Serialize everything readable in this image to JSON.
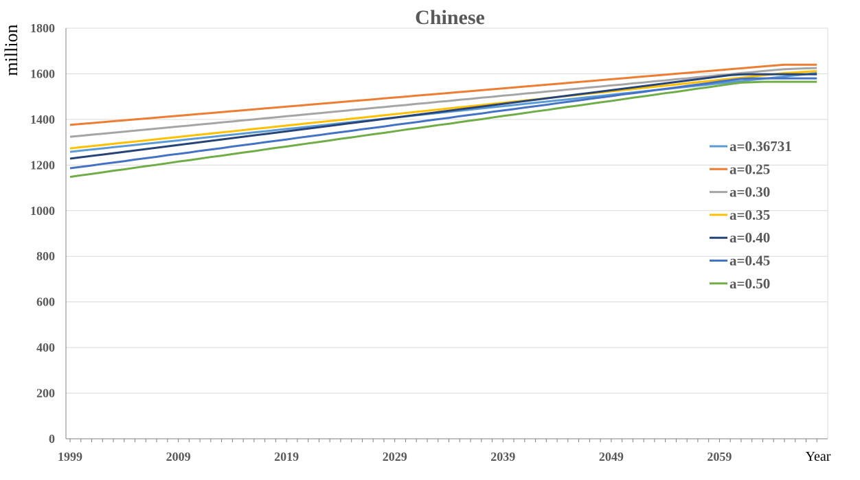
{
  "chart_data": {
    "type": "line",
    "title": "Chinese",
    "ylabel": "million",
    "xlabel": "Year",
    "x": [
      1999,
      2000,
      2001,
      2002,
      2003,
      2004,
      2005,
      2006,
      2007,
      2008,
      2009,
      2010,
      2011,
      2012,
      2013,
      2014,
      2015,
      2016,
      2017,
      2018,
      2019,
      2020,
      2021,
      2022,
      2023,
      2024,
      2025,
      2026,
      2027,
      2028,
      2029,
      2030,
      2031,
      2032,
      2033,
      2034,
      2035,
      2036,
      2037,
      2038,
      2039,
      2040,
      2041,
      2042,
      2043,
      2044,
      2045,
      2046,
      2047,
      2048,
      2049,
      2050,
      2051,
      2052,
      2053,
      2054,
      2055,
      2056,
      2057,
      2058,
      2059,
      2060,
      2061,
      2062,
      2063,
      2064,
      2065,
      2066,
      2067,
      2068
    ],
    "xticks": [
      "1999",
      "2009",
      "2019",
      "2029",
      "2039",
      "2049",
      "2059"
    ],
    "yticks": [
      "0",
      "200",
      "400",
      "600",
      "800",
      "1000",
      "1200",
      "1400",
      "1600",
      "1800"
    ],
    "ylim": [
      0,
      1800
    ],
    "grid": "horizontal",
    "legend_position": "right",
    "series": [
      {
        "name": "a=0.36731",
        "color": "#5b9bd5",
        "values": [
          1258,
          1263,
          1268,
          1273,
          1278,
          1283,
          1288,
          1293,
          1298,
          1303,
          1308,
          1313,
          1318,
          1323,
          1328,
          1333,
          1338,
          1343,
          1348,
          1353,
          1358,
          1363,
          1368,
          1373,
          1378,
          1383,
          1388,
          1393,
          1398,
          1403,
          1408,
          1413,
          1418,
          1423,
          1428,
          1433,
          1438,
          1443,
          1448,
          1453,
          1458,
          1463,
          1468,
          1473,
          1478,
          1483,
          1488,
          1493,
          1498,
          1503,
          1508,
          1513,
          1518,
          1523,
          1528,
          1533,
          1538,
          1543,
          1548,
          1553,
          1558,
          1563,
          1568,
          1573,
          1578,
          1583,
          1588,
          1593,
          1598,
          1603
        ]
      },
      {
        "name": "a=0.25",
        "color": "#ed7d31",
        "values": [
          1376,
          1380,
          1384,
          1388,
          1392,
          1396,
          1400,
          1404,
          1408,
          1412,
          1416,
          1420,
          1424,
          1428,
          1432,
          1436,
          1440,
          1444,
          1448,
          1452,
          1456,
          1460,
          1464,
          1468,
          1472,
          1476,
          1480,
          1484,
          1488,
          1492,
          1496,
          1500,
          1504,
          1508,
          1512,
          1516,
          1520,
          1524,
          1528,
          1532,
          1536,
          1540,
          1544,
          1548,
          1552,
          1556,
          1560,
          1564,
          1568,
          1572,
          1576,
          1580,
          1584,
          1588,
          1592,
          1596,
          1600,
          1604,
          1608,
          1612,
          1616,
          1620,
          1624,
          1628,
          1632,
          1636,
          1640,
          1640,
          1640,
          1640
        ]
      },
      {
        "name": "a=0.30",
        "color": "#a5a5a5",
        "values": [
          1324,
          1328,
          1333,
          1337,
          1342,
          1346,
          1351,
          1355,
          1360,
          1364,
          1369,
          1373,
          1378,
          1382,
          1387,
          1391,
          1396,
          1400,
          1405,
          1409,
          1414,
          1418,
          1423,
          1427,
          1432,
          1436,
          1441,
          1445,
          1450,
          1454,
          1459,
          1463,
          1468,
          1472,
          1477,
          1481,
          1486,
          1490,
          1495,
          1499,
          1504,
          1508,
          1513,
          1517,
          1522,
          1526,
          1531,
          1535,
          1540,
          1544,
          1549,
          1553,
          1558,
          1562,
          1567,
          1571,
          1576,
          1580,
          1585,
          1589,
          1594,
          1598,
          1603,
          1607,
          1612,
          1616,
          1620,
          1622,
          1624,
          1625
        ]
      },
      {
        "name": "a=0.35",
        "color": "#ffc000",
        "values": [
          1273,
          1278,
          1283,
          1288,
          1293,
          1298,
          1303,
          1308,
          1313,
          1318,
          1323,
          1328,
          1333,
          1338,
          1343,
          1348,
          1353,
          1358,
          1363,
          1368,
          1373,
          1378,
          1383,
          1388,
          1393,
          1398,
          1403,
          1408,
          1413,
          1418,
          1423,
          1428,
          1433,
          1438,
          1443,
          1448,
          1453,
          1458,
          1463,
          1468,
          1473,
          1478,
          1483,
          1488,
          1493,
          1498,
          1503,
          1508,
          1513,
          1518,
          1523,
          1528,
          1533,
          1538,
          1543,
          1548,
          1553,
          1558,
          1563,
          1568,
          1573,
          1578,
          1583,
          1588,
          1593,
          1598,
          1603,
          1606,
          1609,
          1612
        ]
      },
      {
        "name": "a=0.40",
        "color": "#264478",
        "values": [
          1228,
          1234,
          1240,
          1246,
          1252,
          1258,
          1264,
          1270,
          1276,
          1282,
          1288,
          1294,
          1300,
          1306,
          1312,
          1318,
          1324,
          1330,
          1336,
          1342,
          1348,
          1354,
          1360,
          1366,
          1372,
          1378,
          1384,
          1390,
          1396,
          1402,
          1408,
          1414,
          1420,
          1426,
          1432,
          1438,
          1444,
          1450,
          1456,
          1462,
          1468,
          1474,
          1480,
          1486,
          1492,
          1498,
          1504,
          1510,
          1516,
          1522,
          1528,
          1534,
          1540,
          1546,
          1552,
          1558,
          1564,
          1570,
          1576,
          1582,
          1588,
          1594,
          1597,
          1598,
          1598,
          1598,
          1598,
          1598,
          1598,
          1598
        ]
      },
      {
        "name": "a=0.45",
        "color": "#4472c4",
        "values": [
          1186,
          1192,
          1198,
          1205,
          1211,
          1217,
          1224,
          1230,
          1236,
          1243,
          1249,
          1255,
          1262,
          1268,
          1274,
          1281,
          1287,
          1293,
          1300,
          1306,
          1312,
          1319,
          1325,
          1331,
          1338,
          1344,
          1350,
          1357,
          1363,
          1369,
          1376,
          1382,
          1388,
          1395,
          1401,
          1407,
          1414,
          1420,
          1426,
          1433,
          1439,
          1445,
          1452,
          1458,
          1464,
          1471,
          1477,
          1483,
          1490,
          1496,
          1502,
          1509,
          1515,
          1521,
          1528,
          1534,
          1540,
          1547,
          1553,
          1559,
          1566,
          1572,
          1578,
          1580,
          1580,
          1580,
          1580,
          1580,
          1580,
          1580
        ]
      },
      {
        "name": "a=0.50",
        "color": "#70ad47",
        "values": [
          1148,
          1155,
          1161,
          1168,
          1175,
          1181,
          1188,
          1195,
          1201,
          1208,
          1215,
          1221,
          1228,
          1235,
          1241,
          1248,
          1255,
          1261,
          1268,
          1275,
          1281,
          1288,
          1295,
          1301,
          1308,
          1315,
          1321,
          1328,
          1335,
          1341,
          1348,
          1355,
          1361,
          1368,
          1375,
          1381,
          1388,
          1395,
          1401,
          1408,
          1415,
          1421,
          1428,
          1435,
          1441,
          1448,
          1455,
          1461,
          1468,
          1475,
          1481,
          1488,
          1495,
          1501,
          1508,
          1515,
          1521,
          1528,
          1535,
          1541,
          1548,
          1555,
          1561,
          1563,
          1565,
          1565,
          1565,
          1565,
          1565,
          1565
        ]
      }
    ]
  }
}
